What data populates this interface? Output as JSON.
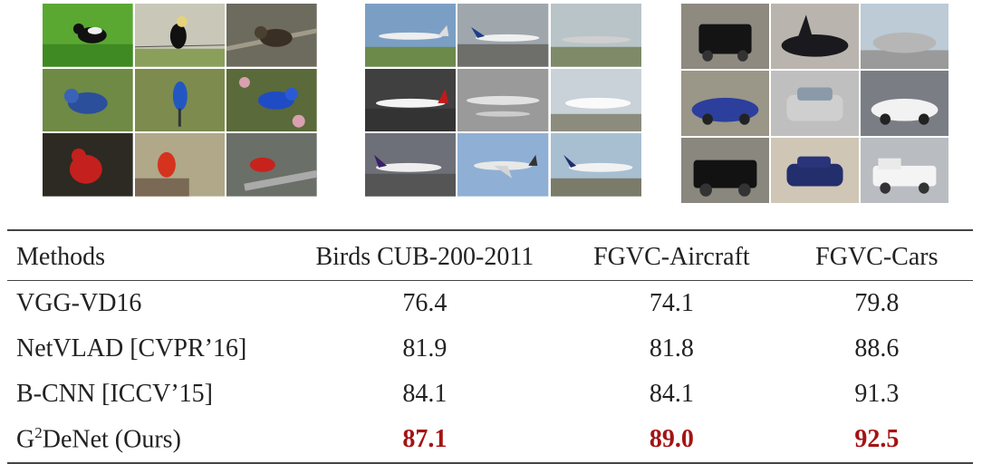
{
  "image_groups": [
    {
      "name": "birds",
      "tiles": [
        "black-bird-grass",
        "black-bird-wire",
        "brown-bird-branch",
        "blue-bird-grass",
        "blue-bird-ground",
        "blue-bird-flowers",
        "red-cardinal-dark",
        "red-cardinal-branch",
        "red-cardinal-perch"
      ]
    },
    {
      "name": "aircraft",
      "tiles": [
        "airliner-runway",
        "airliner-airport",
        "airliner-sky",
        "airliner-tarmac",
        "airliner-gray",
        "airliner-white",
        "airliner-takeoff",
        "airliner-flying",
        "airliner-landing"
      ]
    },
    {
      "name": "cars",
      "tiles": [
        "black-suv",
        "black-sports-car",
        "silver-convertible",
        "blue-sports-car",
        "silver-sedan",
        "white-muscle-car",
        "black-pickup",
        "blue-sedan",
        "white-pickup"
      ]
    }
  ],
  "table": {
    "headers": [
      "Methods",
      "Birds CUB-200-2011",
      "FGVC-Aircraft",
      "FGVC-Cars"
    ],
    "rows": [
      {
        "method": "VGG-VD16",
        "birds": "76.4",
        "aircraft": "74.1",
        "cars": "79.8"
      },
      {
        "method": "NetVLAD [CVPR’16]",
        "birds": "81.9",
        "aircraft": "81.8",
        "cars": "88.6"
      },
      {
        "method": "B-CNN [ICCV’15]",
        "birds": "84.1",
        "aircraft": "84.1",
        "cars": "91.3"
      }
    ],
    "ours": {
      "method_prefix": "G",
      "method_sup": "2",
      "method_suffix": "DeNet (Ours)",
      "birds": "87.1",
      "aircraft": "89.0",
      "cars": "92.5"
    }
  },
  "colors": {
    "highlight": "#a51313"
  }
}
